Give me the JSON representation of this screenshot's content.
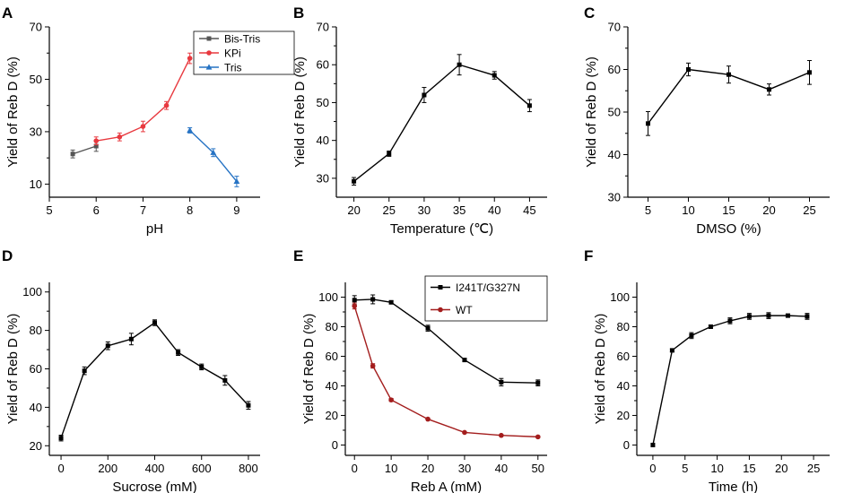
{
  "chart_data": [
    {
      "panel": "A",
      "type": "line",
      "xlabel": "pH",
      "ylabel": "Yield of Reb D (%)",
      "xlim": [
        5,
        9.5
      ],
      "ylim": [
        5,
        70
      ],
      "xticks": [
        5,
        6,
        7,
        8,
        9
      ],
      "yticks": [
        10,
        30,
        50,
        70
      ],
      "legend": "top-right",
      "series": [
        {
          "name": "Bis-Tris",
          "color": "#555555",
          "marker": "square",
          "x": [
            5.5,
            6.0
          ],
          "y": [
            21.5,
            24.5
          ],
          "err": [
            1.5,
            2.0
          ]
        },
        {
          "name": "KPi",
          "color": "#e8393f",
          "marker": "circle",
          "x": [
            6.0,
            6.5,
            7.0,
            7.5,
            8.0
          ],
          "y": [
            26.5,
            28.0,
            32.0,
            40.0,
            58.0
          ],
          "err": [
            1.5,
            1.5,
            2.0,
            1.5,
            2.0
          ]
        },
        {
          "name": "Tris",
          "color": "#2673c4",
          "marker": "triangle",
          "x": [
            8.0,
            8.5,
            9.0
          ],
          "y": [
            30.5,
            22.0,
            11.0
          ],
          "err": [
            1.0,
            1.5,
            2.0
          ]
        }
      ]
    },
    {
      "panel": "B",
      "type": "line",
      "xlabel": "Temperature (℃)",
      "ylabel": "Yield of Reb D (%)",
      "xlim": [
        17.5,
        47.5
      ],
      "ylim": [
        25,
        70
      ],
      "xticks": [
        20,
        25,
        30,
        35,
        40,
        45
      ],
      "yticks": [
        30,
        40,
        50,
        60,
        70
      ],
      "series": [
        {
          "name": "",
          "color": "#000000",
          "marker": "square",
          "x": [
            20,
            25,
            30,
            35,
            40,
            45
          ],
          "y": [
            29.2,
            36.5,
            52.0,
            60.0,
            57.2,
            49.2
          ],
          "err": [
            1.0,
            0.7,
            2.0,
            2.7,
            1.0,
            1.6
          ]
        }
      ]
    },
    {
      "panel": "C",
      "type": "line",
      "xlabel": "DMSO (%)",
      "ylabel": "Yield of Reb D (%)",
      "xlim": [
        2.5,
        27.5
      ],
      "ylim": [
        30,
        70
      ],
      "xticks": [
        5,
        10,
        15,
        20,
        25
      ],
      "yticks": [
        30,
        40,
        50,
        60,
        70
      ],
      "series": [
        {
          "name": "",
          "color": "#000000",
          "marker": "square",
          "x": [
            5,
            10,
            15,
            20,
            25
          ],
          "y": [
            47.3,
            60.0,
            58.8,
            55.3,
            59.3
          ],
          "err": [
            2.8,
            1.5,
            2.0,
            1.3,
            2.8
          ]
        }
      ]
    },
    {
      "panel": "D",
      "type": "line",
      "xlabel": "Sucrose (mM)",
      "ylabel": "Yield of Reb D (%)",
      "xlim": [
        -50,
        850
      ],
      "ylim": [
        15,
        105
      ],
      "xticks": [
        0,
        200,
        400,
        600,
        800
      ],
      "yticks": [
        20,
        40,
        60,
        80,
        100
      ],
      "series": [
        {
          "name": "",
          "color": "#000000",
          "marker": "square",
          "x": [
            0,
            100,
            200,
            300,
            400,
            500,
            600,
            700,
            800
          ],
          "y": [
            24,
            59,
            72,
            75.5,
            84,
            68.5,
            61,
            54,
            41
          ],
          "err": [
            1.5,
            2,
            2,
            3,
            1.5,
            1.5,
            1.5,
            2.5,
            2
          ]
        }
      ]
    },
    {
      "panel": "E",
      "type": "line",
      "xlabel": "Reb A (mM)",
      "ylabel": "Yield of Reb D (%)",
      "xlim": [
        -2.5,
        52.5
      ],
      "ylim": [
        -7,
        110
      ],
      "xticks": [
        0,
        10,
        20,
        30,
        40,
        50
      ],
      "yticks": [
        0,
        20,
        40,
        60,
        80,
        100
      ],
      "legend": "top-right",
      "series": [
        {
          "name": "I241T/G327N",
          "color": "#000000",
          "marker": "square",
          "x": [
            0,
            5,
            10,
            20,
            30,
            40,
            50
          ],
          "y": [
            98,
            98.5,
            96.5,
            79,
            57.5,
            42.5,
            42
          ],
          "err": [
            3,
            3,
            1,
            2,
            1,
            2.5,
            2
          ]
        },
        {
          "name": "WT",
          "color": "#a31d1d",
          "marker": "circle",
          "x": [
            0,
            5,
            10,
            20,
            30,
            40,
            50
          ],
          "y": [
            94,
            53.5,
            30.5,
            17.5,
            8.5,
            6.5,
            5.5
          ],
          "err": [
            2,
            1.5,
            1,
            0.5,
            0.5,
            0.5,
            0.5
          ]
        }
      ]
    },
    {
      "panel": "F",
      "type": "line",
      "xlabel": "Time (h)",
      "ylabel": "Yield of Reb D (%)",
      "xlim": [
        -2.5,
        27.5
      ],
      "ylim": [
        -7,
        110
      ],
      "xticks": [
        0,
        5,
        10,
        15,
        20,
        25
      ],
      "yticks": [
        0,
        20,
        40,
        60,
        80,
        100
      ],
      "series": [
        {
          "name": "",
          "color": "#000000",
          "marker": "square",
          "x": [
            0,
            3,
            6,
            9,
            12,
            15,
            18,
            21,
            24
          ],
          "y": [
            0,
            64,
            74,
            80,
            84,
            87,
            87.5,
            87.5,
            87
          ],
          "err": [
            0,
            1,
            2,
            1,
            2,
            2,
            2,
            1,
            2
          ]
        }
      ]
    }
  ]
}
